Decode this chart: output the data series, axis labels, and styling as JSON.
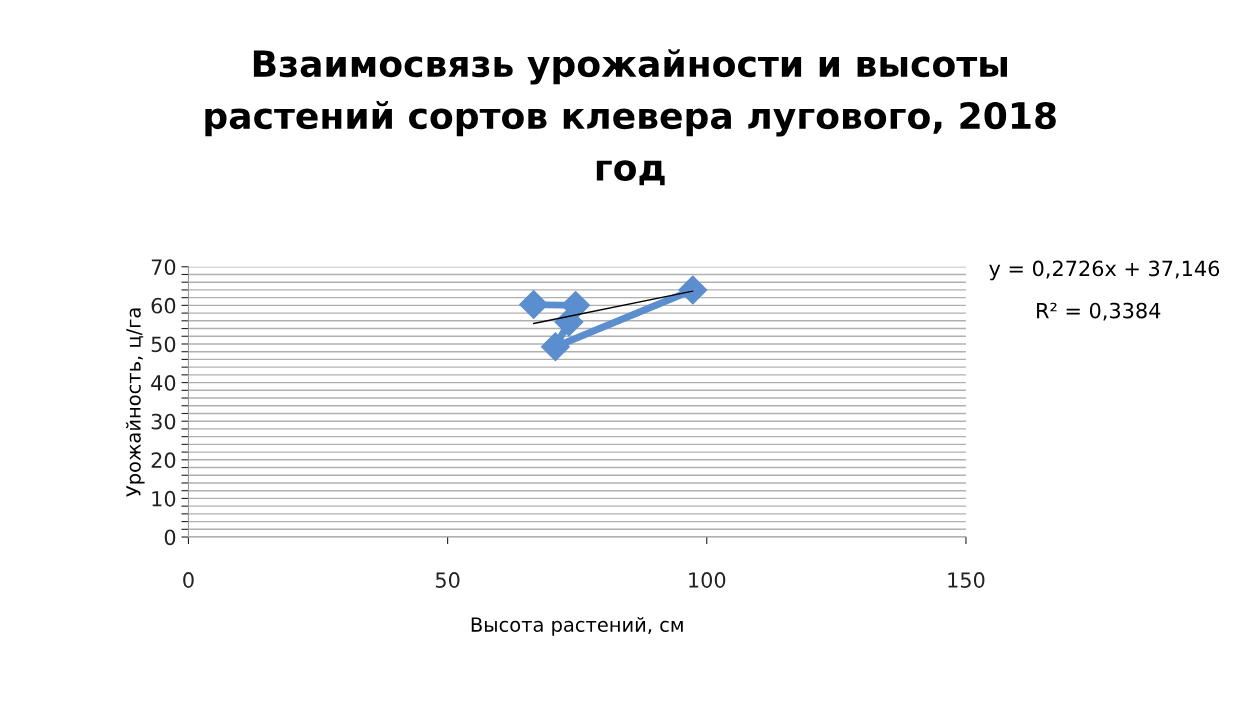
{
  "chart_data": {
    "type": "line",
    "title": "Взаимосвязь урожайности и высоты\nрастений сортов клевера лугового, 2018\nгод",
    "xlabel": "Высота растений, см",
    "ylabel": "Урожайность, ц/га",
    "xlim": [
      0,
      150
    ],
    "xticks": [
      0,
      50,
      100,
      150
    ],
    "ylim": [
      0,
      70
    ],
    "yticks": [
      0,
      {
        "value": 2,
        "label": null
      },
      {
        "value": 4,
        "label": null
      },
      {
        "value": 6,
        "label": null
      },
      {
        "value": 8,
        "label": null
      },
      10,
      {
        "value": 12,
        "label": null
      },
      {
        "value": 14,
        "label": null
      },
      {
        "value": 16,
        "label": null
      },
      {
        "value": 18,
        "label": null
      },
      20,
      {
        "value": 22,
        "label": null
      },
      {
        "value": 24,
        "label": null
      },
      {
        "value": 26,
        "label": null
      },
      {
        "value": 28,
        "label": null
      },
      30,
      {
        "value": 32,
        "label": null
      },
      {
        "value": 34,
        "label": null
      },
      {
        "value": 36,
        "label": null
      },
      {
        "value": 38,
        "label": null
      },
      40,
      {
        "value": 42,
        "label": null
      },
      {
        "value": 44,
        "label": null
      },
      {
        "value": 46,
        "label": null
      },
      {
        "value": 48,
        "label": null
      },
      50,
      {
        "value": 52,
        "label": null
      },
      {
        "value": 54,
        "label": null
      },
      {
        "value": 56,
        "label": null
      },
      {
        "value": 58,
        "label": null
      },
      60,
      {
        "value": 62,
        "label": null
      },
      {
        "value": 64,
        "label": null
      },
      {
        "value": 66,
        "label": null
      },
      {
        "value": 68,
        "label": null
      },
      70
    ],
    "grid": "y",
    "marker": "diamond",
    "line_style": "solid",
    "series": [
      {
        "color": "#5a8ecf",
        "x": [
          66.6,
          74.7,
          73.4,
          70.8,
          97.3
        ],
        "values": [
          60.2,
          60.0,
          55.7,
          49.3,
          64.0
        ]
      },
      {
        "type": "line",
        "marker": "none",
        "color": "#000000",
        "x": [
          66.6,
          97.3
        ],
        "values": [
          55.3,
          63.7
        ]
      }
    ],
    "annotations": [
      "y = 0,2726x + 37,146",
      "R² = 0,3384"
    ]
  }
}
